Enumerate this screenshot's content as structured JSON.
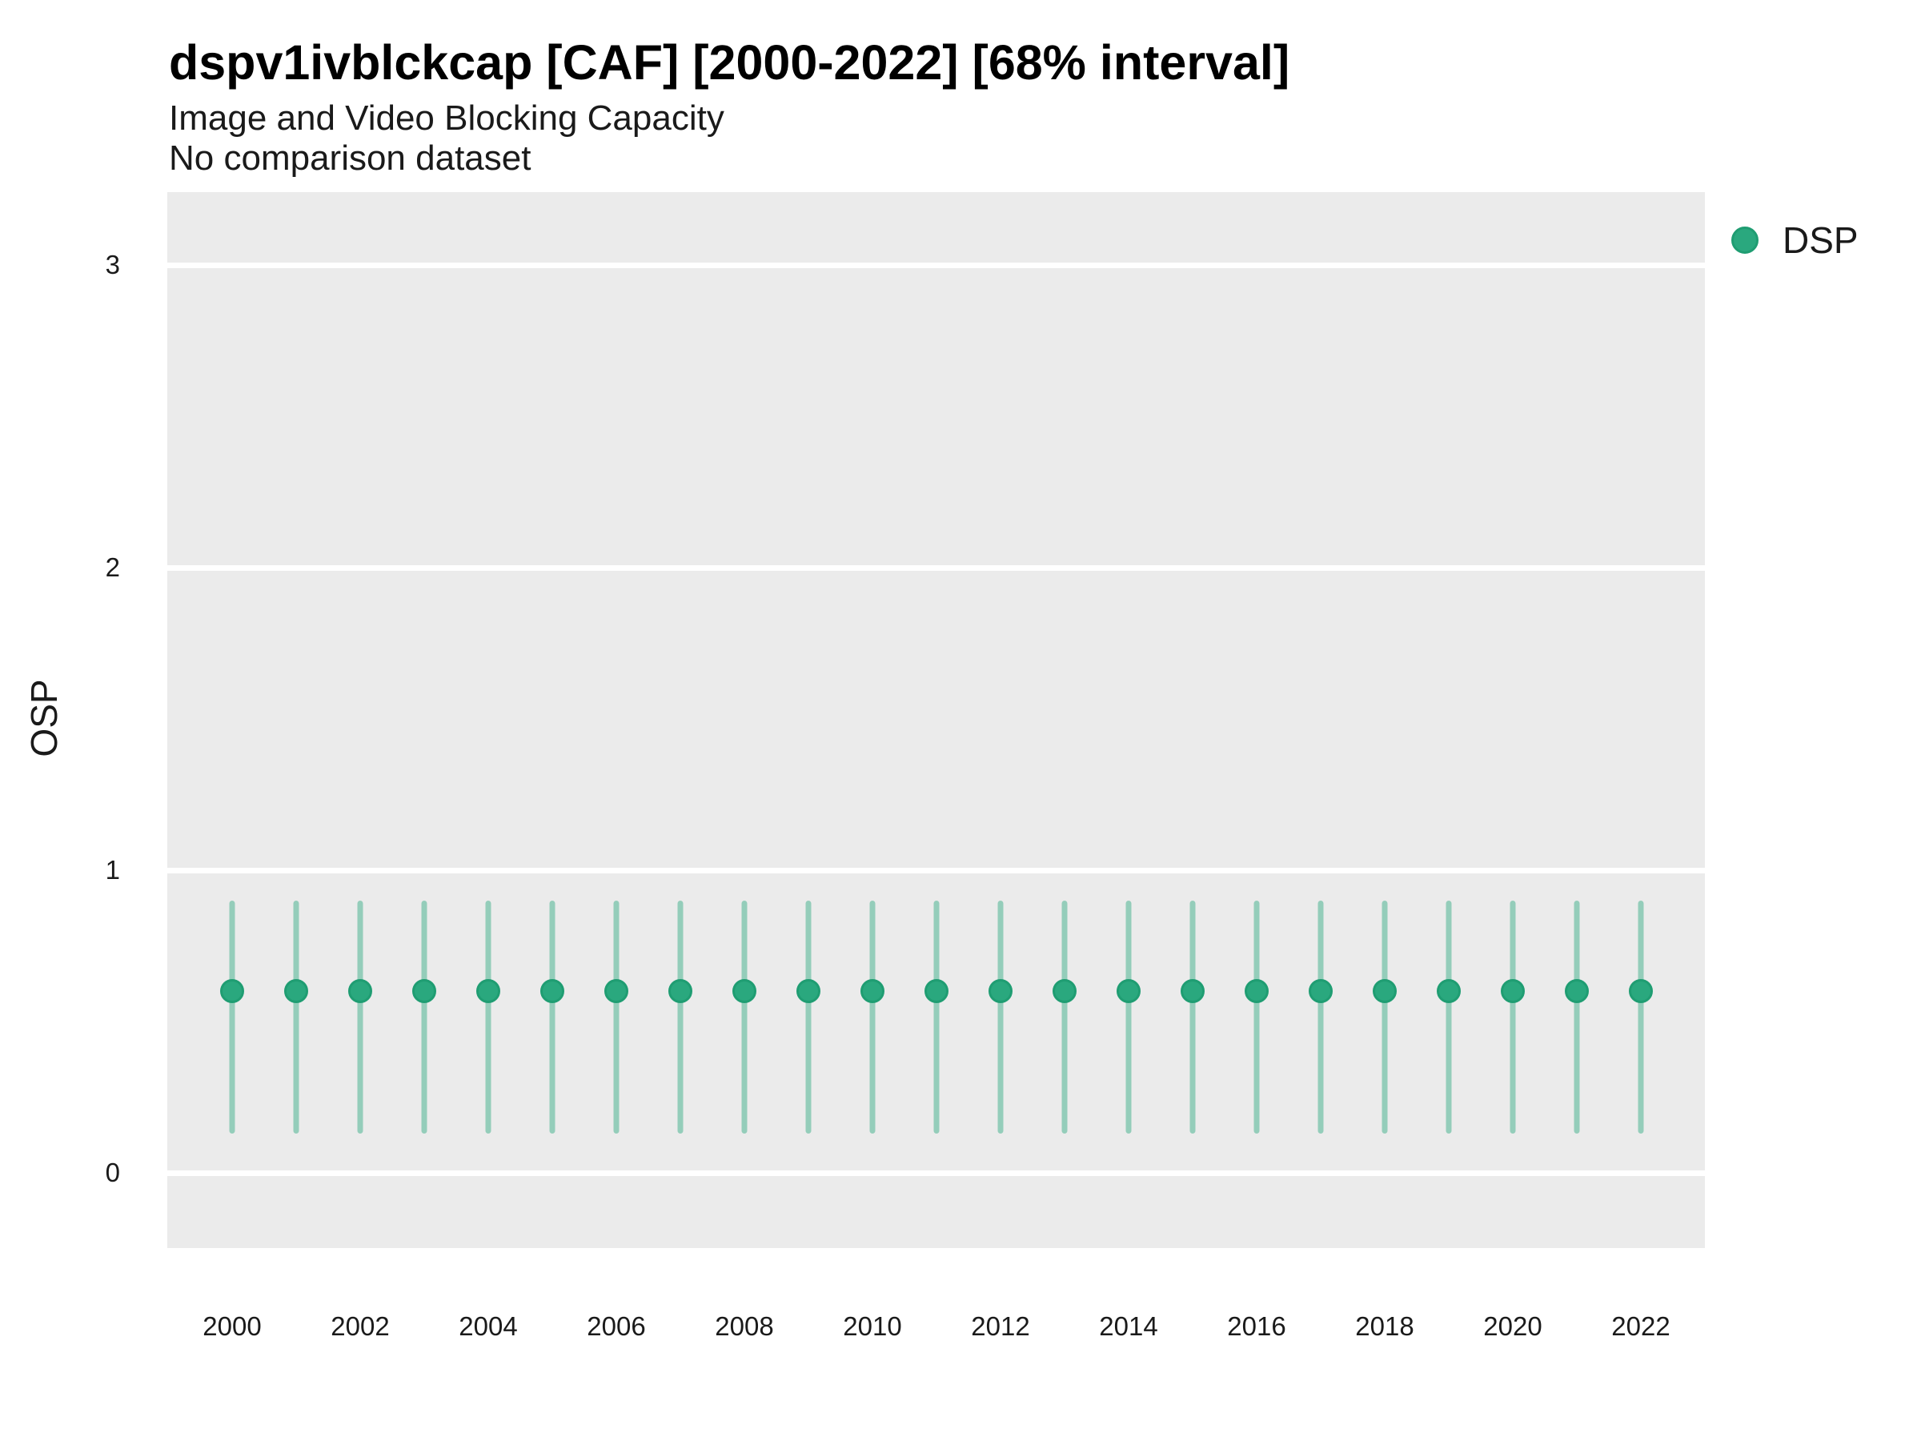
{
  "header": {
    "title": "dspv1ivblckcap [CAF] [2000-2022] [68% interval]",
    "subtitle": "Image and Video Blocking Capacity",
    "note": "No comparison dataset"
  },
  "y_axis": {
    "title": "OSP",
    "ticks": [
      3,
      2,
      1,
      0
    ]
  },
  "x_axis": {
    "ticks": [
      2000,
      2002,
      2004,
      2006,
      2008,
      2010,
      2012,
      2014,
      2016,
      2018,
      2020,
      2022
    ]
  },
  "legend": {
    "items": [
      {
        "label": "DSP",
        "color": "#2aa87e"
      }
    ]
  },
  "colors": {
    "point_fill": "#2aa87e",
    "point_border": "#1f9d72",
    "interval_bar": "rgba(42,168,126,0.45)",
    "panel_background": "#ebebeb",
    "gridline": "#ffffff"
  },
  "chart_data": {
    "type": "scatter",
    "title": "dspv1ivblckcap [CAF] [2000-2022] [68% interval]",
    "subtitle": "Image and Video Blocking Capacity",
    "note": "No comparison dataset",
    "xlabel": "",
    "ylabel": "OSP",
    "interval": "68%",
    "ylim": [
      -0.25,
      3.24
    ],
    "xlim": [
      1999,
      2023
    ],
    "grid": "major-horizontal-white-on-gray",
    "legend_position": "top-right-outside",
    "x": [
      2000,
      2001,
      2002,
      2003,
      2004,
      2005,
      2006,
      2007,
      2008,
      2009,
      2010,
      2011,
      2012,
      2013,
      2014,
      2015,
      2016,
      2017,
      2018,
      2019,
      2020,
      2021,
      2022
    ],
    "series": [
      {
        "name": "DSP",
        "points": [
          {
            "year": 2000,
            "mean": 0.6,
            "lo": 0.13,
            "hi": 0.9
          },
          {
            "year": 2001,
            "mean": 0.6,
            "lo": 0.13,
            "hi": 0.9
          },
          {
            "year": 2002,
            "mean": 0.6,
            "lo": 0.13,
            "hi": 0.9
          },
          {
            "year": 2003,
            "mean": 0.6,
            "lo": 0.13,
            "hi": 0.9
          },
          {
            "year": 2004,
            "mean": 0.6,
            "lo": 0.13,
            "hi": 0.9
          },
          {
            "year": 2005,
            "mean": 0.6,
            "lo": 0.13,
            "hi": 0.9
          },
          {
            "year": 2006,
            "mean": 0.6,
            "lo": 0.13,
            "hi": 0.9
          },
          {
            "year": 2007,
            "mean": 0.6,
            "lo": 0.13,
            "hi": 0.9
          },
          {
            "year": 2008,
            "mean": 0.6,
            "lo": 0.13,
            "hi": 0.9
          },
          {
            "year": 2009,
            "mean": 0.6,
            "lo": 0.13,
            "hi": 0.9
          },
          {
            "year": 2010,
            "mean": 0.6,
            "lo": 0.13,
            "hi": 0.9
          },
          {
            "year": 2011,
            "mean": 0.6,
            "lo": 0.13,
            "hi": 0.9
          },
          {
            "year": 2012,
            "mean": 0.6,
            "lo": 0.13,
            "hi": 0.9
          },
          {
            "year": 2013,
            "mean": 0.6,
            "lo": 0.13,
            "hi": 0.9
          },
          {
            "year": 2014,
            "mean": 0.6,
            "lo": 0.13,
            "hi": 0.9
          },
          {
            "year": 2015,
            "mean": 0.6,
            "lo": 0.13,
            "hi": 0.9
          },
          {
            "year": 2016,
            "mean": 0.6,
            "lo": 0.13,
            "hi": 0.9
          },
          {
            "year": 2017,
            "mean": 0.6,
            "lo": 0.13,
            "hi": 0.9
          },
          {
            "year": 2018,
            "mean": 0.6,
            "lo": 0.13,
            "hi": 0.9
          },
          {
            "year": 2019,
            "mean": 0.6,
            "lo": 0.13,
            "hi": 0.9
          },
          {
            "year": 2020,
            "mean": 0.6,
            "lo": 0.13,
            "hi": 0.9
          },
          {
            "year": 2021,
            "mean": 0.6,
            "lo": 0.13,
            "hi": 0.9
          },
          {
            "year": 2022,
            "mean": 0.6,
            "lo": 0.13,
            "hi": 0.9
          }
        ]
      }
    ]
  }
}
